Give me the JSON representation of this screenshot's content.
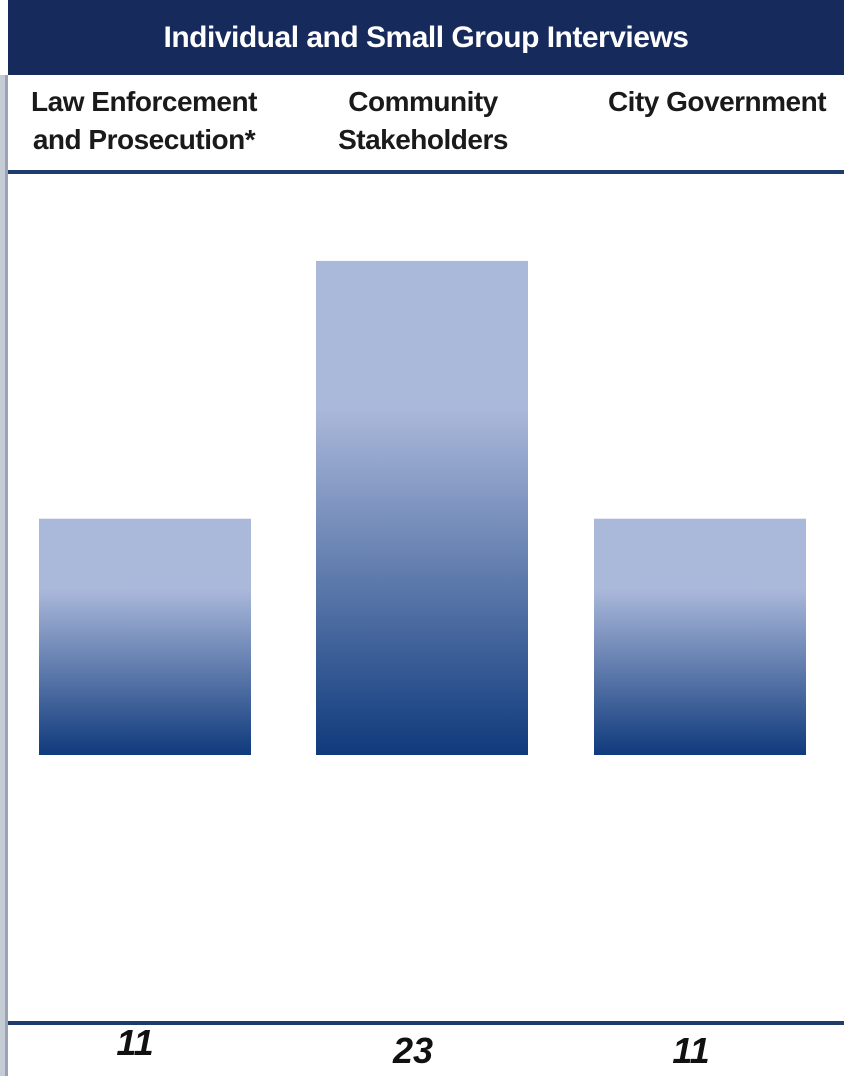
{
  "header": {
    "title": "Individual and Small Group Interviews"
  },
  "chart_data": {
    "type": "bar",
    "title": "Individual and Small Group Interviews",
    "categories": [
      "Law Enforcement\nand Prosecution*",
      "Community\nStakeholders",
      "City Government"
    ],
    "values": [
      11,
      23,
      11
    ],
    "value_labels": [
      "11",
      "23",
      "11"
    ],
    "ylim": [
      0,
      27
    ],
    "grid": false,
    "legend": "none"
  },
  "colors": {
    "title_bg": "#172a5c",
    "bar_top": "#aab8da",
    "bar_bottom": "#0f3a7c",
    "rule": "#1f3c6e"
  }
}
